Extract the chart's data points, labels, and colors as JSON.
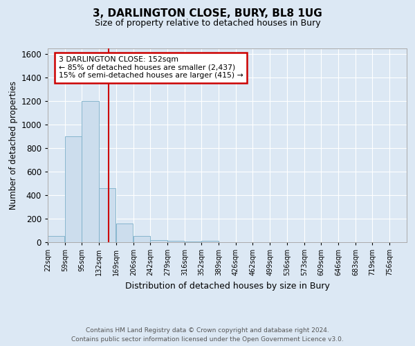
{
  "title": "3, DARLINGTON CLOSE, BURY, BL8 1UG",
  "subtitle": "Size of property relative to detached houses in Bury",
  "xlabel": "Distribution of detached houses by size in Bury",
  "ylabel": "Number of detached properties",
  "footnote1": "Contains HM Land Registry data © Crown copyright and database right 2024.",
  "footnote2": "Contains public sector information licensed under the Open Government Licence v3.0.",
  "bar_color": "#ccdded",
  "bar_edgecolor": "#7aaec8",
  "bg_color": "#dce8f4",
  "plot_bg_color": "#dce8f4",
  "grid_color": "#ffffff",
  "red_line_color": "#cc0000",
  "annotation_box_color": "#cc0000",
  "annotation_text": "3 DARLINGTON CLOSE: 152sqm\n← 85% of detached houses are smaller (2,437)\n15% of semi-detached houses are larger (415) →",
  "red_line_x": 152,
  "categories": [
    "22sqm",
    "59sqm",
    "95sqm",
    "132sqm",
    "169sqm",
    "206sqm",
    "242sqm",
    "279sqm",
    "316sqm",
    "352sqm",
    "389sqm",
    "426sqm",
    "462sqm",
    "499sqm",
    "536sqm",
    "573sqm",
    "609sqm",
    "646sqm",
    "683sqm",
    "719sqm",
    "756sqm"
  ],
  "bin_edges": [
    22,
    59,
    95,
    132,
    169,
    206,
    242,
    279,
    316,
    352,
    389,
    426,
    462,
    499,
    536,
    573,
    609,
    646,
    683,
    719,
    756
  ],
  "bin_width": 37,
  "values": [
    55,
    900,
    1200,
    460,
    160,
    55,
    20,
    10,
    8,
    10,
    0,
    0,
    0,
    0,
    0,
    0,
    0,
    0,
    0,
    0,
    0
  ],
  "ylim": [
    0,
    1650
  ],
  "yticks": [
    0,
    200,
    400,
    600,
    800,
    1000,
    1200,
    1400,
    1600
  ]
}
